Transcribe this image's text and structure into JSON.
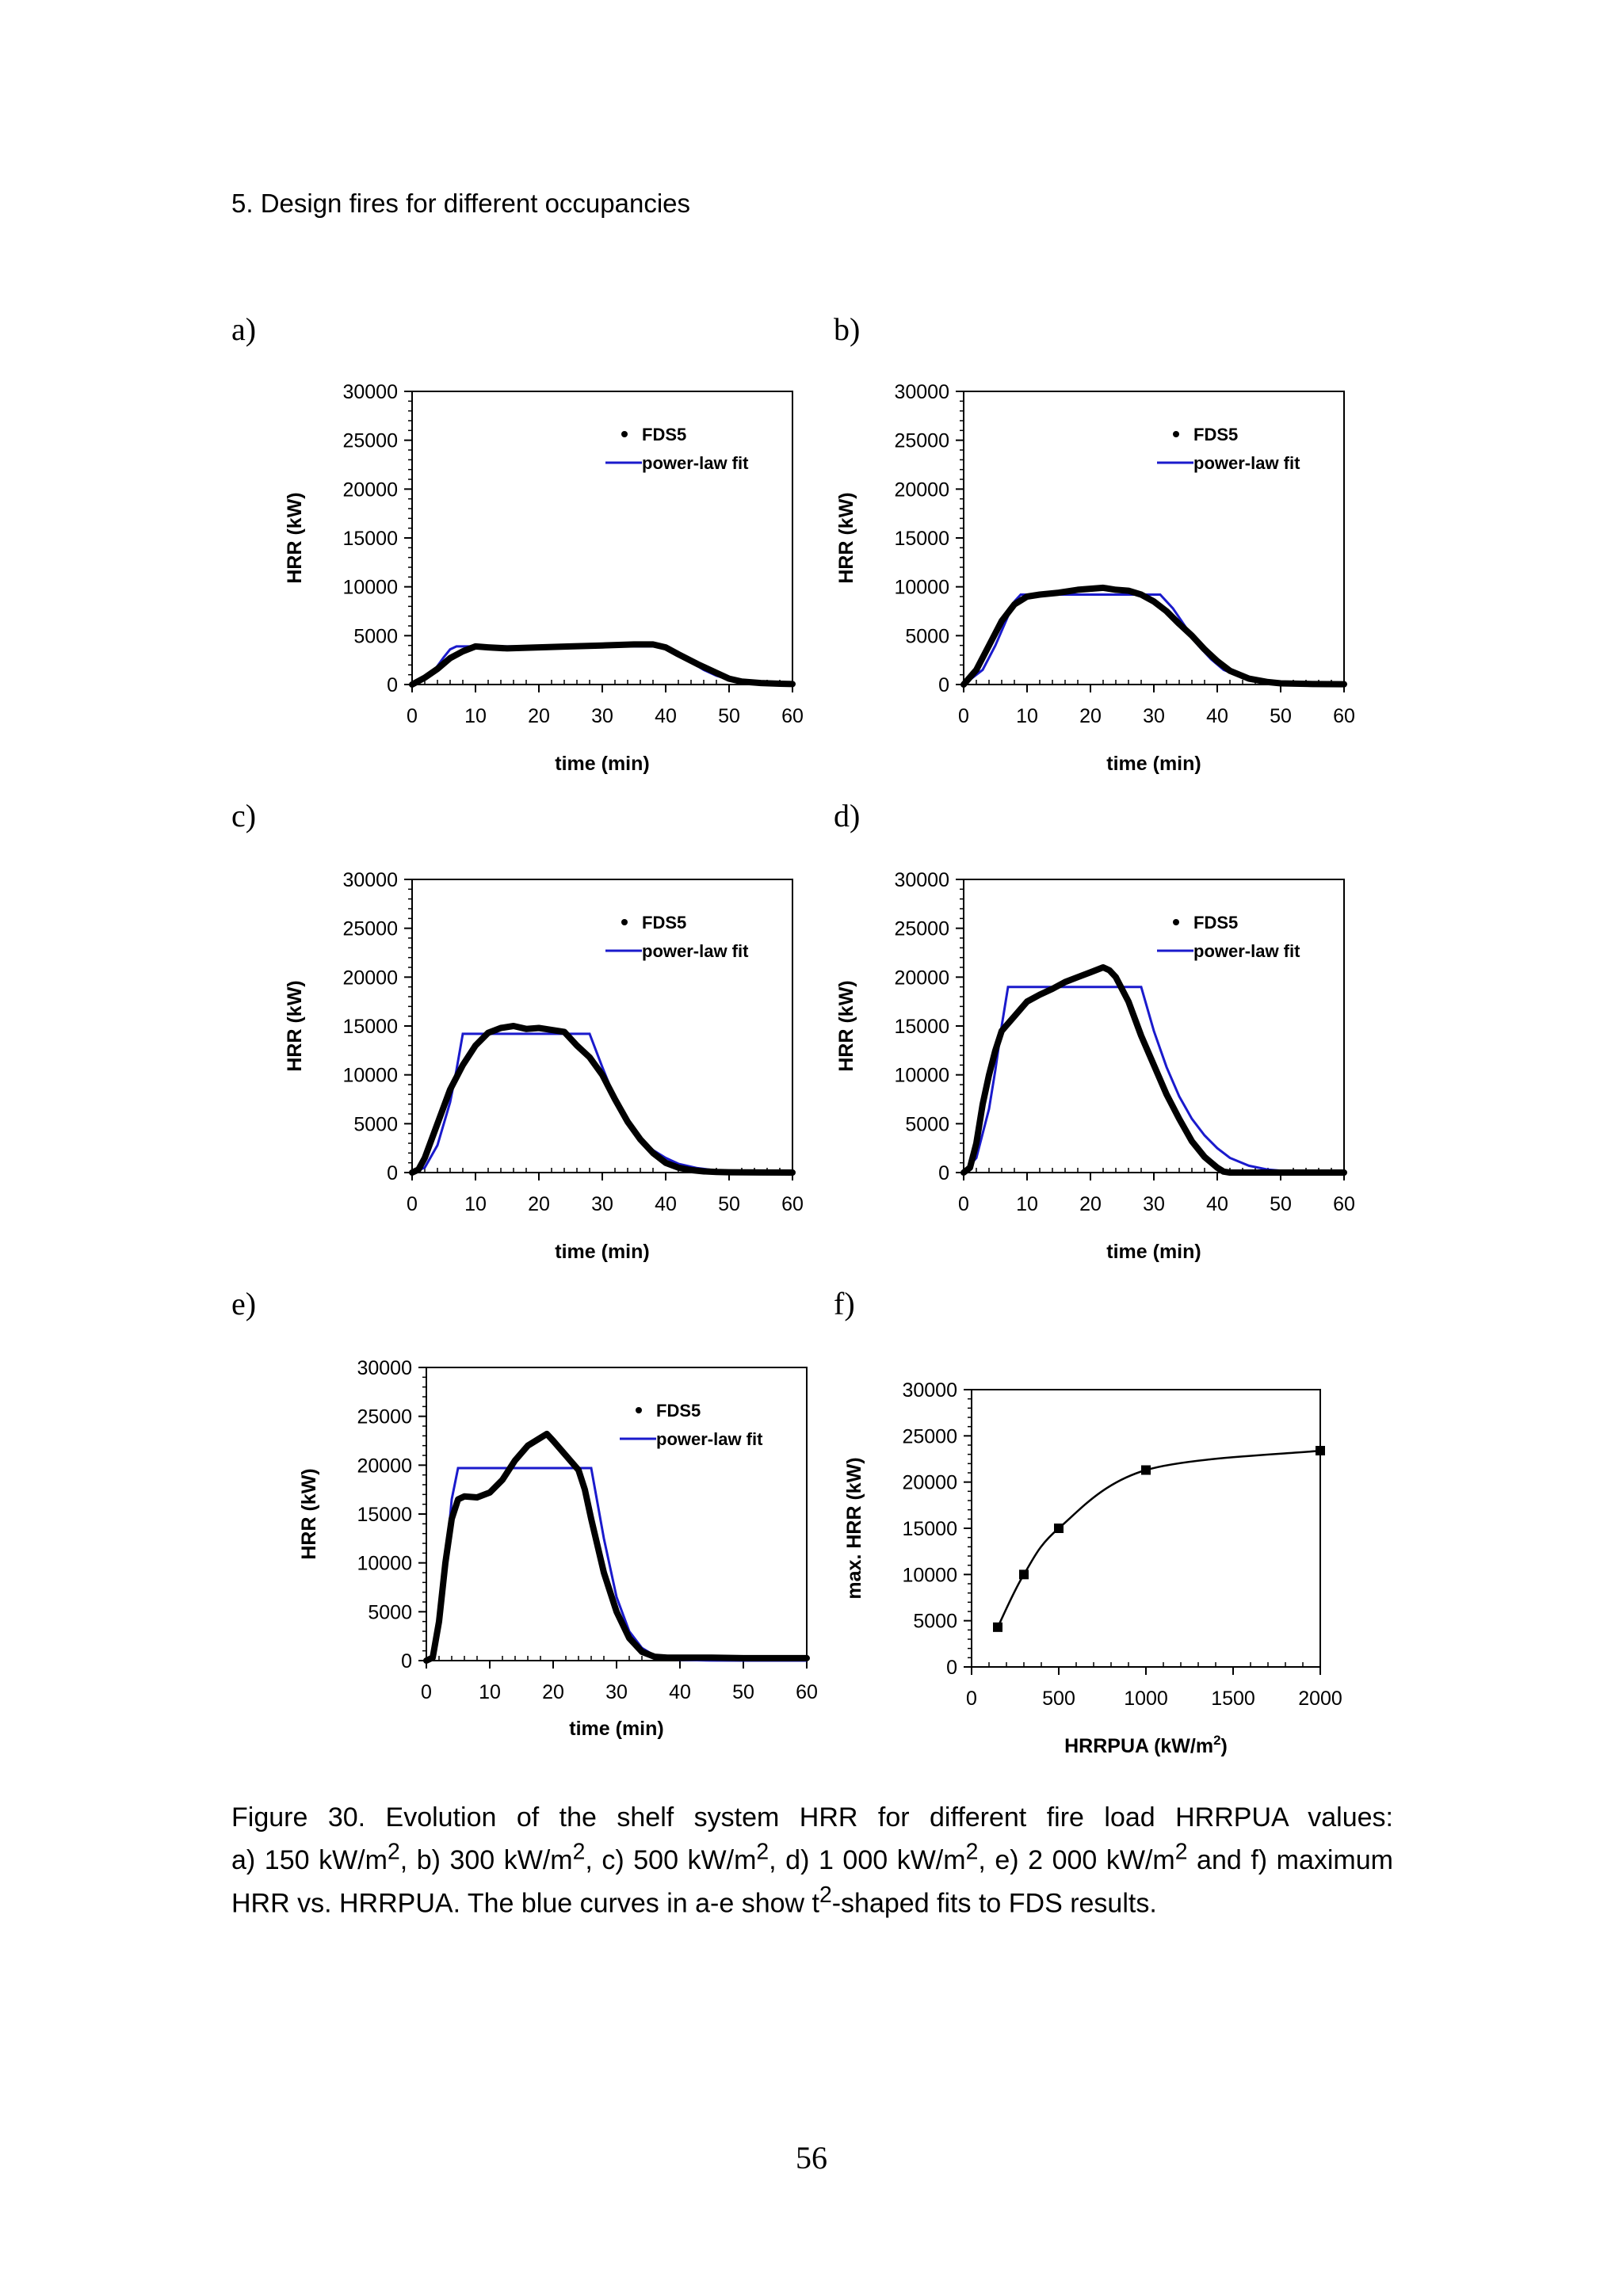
{
  "header": "5. Design fires for different occupancies",
  "panels": {
    "a": "a)",
    "b": "b)",
    "c": "c)",
    "d": "d)",
    "e": "e)",
    "f": "f)"
  },
  "caption": {
    "p1": "Figure 30. Evolution of the shelf system HRR for different fire load HRRPUA values:",
    "p2a": "a) 150 kW/m",
    "p2b": ", b) 300 kW/m",
    "p2c": ", c) 500 kW/m",
    "p2d": ", d) 1 000 kW/m",
    "p2e": ", e) 2 000 kW/m",
    "p2f": " and f) maximum",
    "p3a": "HRR vs. HRRPUA. The blue curves in a-e show t",
    "p3b": "-shaped fits to FDS results.",
    "sup": "2"
  },
  "page_number": "56",
  "colors": {
    "fds": "#000000",
    "fit": "#1a1acc"
  },
  "chart_data": [
    {
      "id": "a",
      "type": "line",
      "xlabel": "time (min)",
      "ylabel": "HRR (kW)",
      "xlim": [
        0,
        60
      ],
      "ylim": [
        0,
        30000
      ],
      "xticks": [
        0,
        10,
        20,
        30,
        40,
        50,
        60
      ],
      "yticks": [
        0,
        5000,
        10000,
        15000,
        20000,
        25000,
        30000
      ],
      "legend": {
        "position": "top-right",
        "entries": [
          "FDS5",
          "power-law fit"
        ]
      },
      "series": [
        {
          "name": "FDS5",
          "x": [
            0,
            2,
            4,
            6,
            8,
            10,
            12,
            15,
            20,
            25,
            30,
            35,
            38,
            40,
            42,
            45,
            48,
            50,
            52,
            55,
            58,
            60
          ],
          "y": [
            0,
            700,
            1600,
            2700,
            3400,
            3900,
            3800,
            3700,
            3800,
            3900,
            4000,
            4100,
            4100,
            3800,
            3100,
            2100,
            1200,
            600,
            300,
            150,
            80,
            50
          ]
        },
        {
          "name": "power-law fit",
          "x": [
            0,
            3,
            5,
            6,
            7,
            8,
            40,
            42,
            44,
            46,
            48,
            50,
            53,
            56,
            60
          ],
          "y": [
            0,
            1000,
            2800,
            3600,
            3900,
            3900,
            3900,
            3200,
            2300,
            1500,
            900,
            500,
            200,
            60,
            10
          ]
        }
      ]
    },
    {
      "id": "b",
      "type": "line",
      "xlabel": "time (min)",
      "ylabel": "HRR (kW)",
      "xlim": [
        0,
        60
      ],
      "ylim": [
        0,
        30000
      ],
      "xticks": [
        0,
        10,
        20,
        30,
        40,
        50,
        60
      ],
      "yticks": [
        0,
        5000,
        10000,
        15000,
        20000,
        25000,
        30000
      ],
      "legend": {
        "position": "top-right",
        "entries": [
          "FDS5",
          "power-law fit"
        ]
      },
      "series": [
        {
          "name": "FDS5",
          "x": [
            0,
            2,
            4,
            6,
            8,
            10,
            12,
            15,
            18,
            20,
            22,
            24,
            26,
            28,
            30,
            32,
            34,
            36,
            38,
            40,
            42,
            45,
            48,
            50,
            55,
            60
          ],
          "y": [
            0,
            1500,
            4000,
            6500,
            8200,
            9000,
            9200,
            9400,
            9700,
            9800,
            9900,
            9700,
            9600,
            9200,
            8500,
            7500,
            6200,
            5000,
            3600,
            2400,
            1400,
            600,
            250,
            120,
            50,
            30
          ]
        },
        {
          "name": "power-law fit",
          "x": [
            0,
            3,
            5,
            7,
            8,
            9,
            31,
            33,
            35,
            37,
            39,
            41,
            44,
            48,
            55,
            60
          ],
          "y": [
            0,
            1500,
            4000,
            7000,
            8500,
            9200,
            9200,
            7800,
            5900,
            4000,
            2600,
            1500,
            700,
            250,
            50,
            10
          ]
        }
      ]
    },
    {
      "id": "c",
      "type": "line",
      "xlabel": "time (min)",
      "ylabel": "HRR (kW)",
      "xlim": [
        0,
        60
      ],
      "ylim": [
        0,
        30000
      ],
      "xticks": [
        0,
        10,
        20,
        30,
        40,
        50,
        60
      ],
      "yticks": [
        0,
        5000,
        10000,
        15000,
        20000,
        25000,
        30000
      ],
      "legend": {
        "position": "top-right",
        "entries": [
          "FDS5",
          "power-law fit"
        ]
      },
      "series": [
        {
          "name": "FDS5",
          "x": [
            0,
            1,
            2,
            4,
            6,
            8,
            10,
            12,
            14,
            16,
            18,
            20,
            22,
            24,
            26,
            28,
            30,
            32,
            34,
            36,
            38,
            40,
            42,
            44,
            46,
            48,
            50,
            55,
            60
          ],
          "y": [
            0,
            300,
            1500,
            5000,
            8500,
            11000,
            13000,
            14300,
            14800,
            15000,
            14700,
            14800,
            14600,
            14400,
            13000,
            11800,
            10000,
            7500,
            5200,
            3400,
            2000,
            1000,
            500,
            250,
            120,
            60,
            30,
            10,
            0
          ]
        },
        {
          "name": "power-law fit",
          "x": [
            0,
            2,
            4,
            6,
            7,
            8,
            28,
            30,
            32,
            34,
            36,
            38,
            40,
            42,
            45,
            48,
            52,
            60
          ],
          "y": [
            0,
            500,
            2800,
            7200,
            10500,
            14200,
            14200,
            10800,
            7600,
            5200,
            3500,
            2300,
            1500,
            900,
            450,
            200,
            60,
            0
          ]
        }
      ]
    },
    {
      "id": "d",
      "type": "line",
      "xlabel": "time (min)",
      "ylabel": "HRR (kW)",
      "xlim": [
        0,
        60
      ],
      "ylim": [
        0,
        30000
      ],
      "xticks": [
        0,
        10,
        20,
        30,
        40,
        50,
        60
      ],
      "yticks": [
        0,
        5000,
        10000,
        15000,
        20000,
        25000,
        30000
      ],
      "legend": {
        "position": "top-right",
        "entries": [
          "FDS5",
          "power-law fit"
        ]
      },
      "series": [
        {
          "name": "FDS5",
          "x": [
            0,
            1,
            2,
            3,
            4,
            5,
            6,
            8,
            10,
            12,
            14,
            16,
            18,
            20,
            22,
            23,
            24,
            26,
            28,
            30,
            32,
            34,
            36,
            38,
            40,
            41,
            42,
            45,
            50,
            55,
            60
          ],
          "y": [
            0,
            500,
            3000,
            7000,
            10000,
            12500,
            14500,
            16000,
            17500,
            18200,
            18800,
            19500,
            20000,
            20500,
            21000,
            20700,
            20000,
            17500,
            14000,
            11000,
            8000,
            5500,
            3200,
            1600,
            500,
            100,
            0,
            0,
            0,
            0,
            0
          ]
        },
        {
          "name": "power-law fit",
          "x": [
            0,
            2,
            4,
            5,
            6,
            7,
            28,
            30,
            32,
            34,
            36,
            38,
            40,
            42,
            45,
            48,
            52,
            60
          ],
          "y": [
            0,
            1500,
            6500,
            10500,
            15000,
            19000,
            19000,
            14500,
            10800,
            7800,
            5500,
            3800,
            2500,
            1500,
            700,
            300,
            80,
            0
          ]
        }
      ]
    },
    {
      "id": "e",
      "type": "line",
      "xlabel": "time (min)",
      "ylabel": "HRR (kW)",
      "xlim": [
        0,
        60
      ],
      "ylim": [
        0,
        30000
      ],
      "xticks": [
        0,
        10,
        20,
        30,
        40,
        50,
        60
      ],
      "yticks": [
        0,
        5000,
        10000,
        15000,
        20000,
        25000,
        30000
      ],
      "legend": {
        "position": "top-right",
        "entries": [
          "FDS5",
          "power-law fit"
        ]
      },
      "series": [
        {
          "name": "FDS5",
          "x": [
            0,
            1,
            2,
            3,
            4,
            5,
            6,
            8,
            10,
            12,
            14,
            16,
            18,
            19,
            20,
            22,
            24,
            25,
            26,
            28,
            30,
            32,
            34,
            36,
            38,
            40,
            45,
            50,
            55,
            60
          ],
          "y": [
            0,
            300,
            4000,
            10000,
            14500,
            16500,
            16800,
            16700,
            17200,
            18500,
            20500,
            22000,
            22800,
            23200,
            22500,
            21000,
            19500,
            17500,
            14500,
            9000,
            5000,
            2300,
            900,
            400,
            300,
            300,
            300,
            250,
            250,
            250
          ]
        },
        {
          "name": "power-law fit",
          "x": [
            0,
            1,
            2,
            3,
            4,
            5,
            26,
            28,
            30,
            32,
            34,
            36,
            38,
            40,
            45,
            50,
            60
          ],
          "y": [
            0,
            500,
            3500,
            9500,
            16500,
            19700,
            19700,
            12500,
            6500,
            3000,
            1300,
            500,
            200,
            80,
            10,
            0,
            0
          ]
        }
      ]
    },
    {
      "id": "f",
      "type": "scatter",
      "xlabel": "HRRPUA (kW/m",
      "xlabel_sup": "2",
      "xlabel_end": ")",
      "ylabel": "max. HRR (kW)",
      "xlim": [
        0,
        2000
      ],
      "ylim": [
        0,
        30000
      ],
      "xticks": [
        0,
        500,
        1000,
        1500,
        2000
      ],
      "yticks": [
        0,
        5000,
        10000,
        15000,
        20000,
        25000,
        30000
      ],
      "series": [
        {
          "name": "max HRR",
          "x": [
            150,
            300,
            500,
            1000,
            2000
          ],
          "y": [
            4300,
            10000,
            15000,
            21300,
            23400
          ]
        }
      ]
    }
  ]
}
